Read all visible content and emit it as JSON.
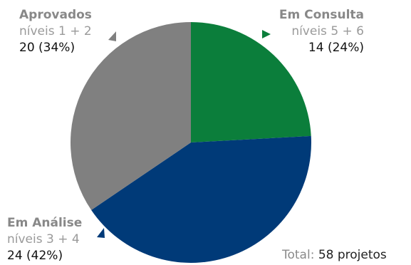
{
  "chart_data": {
    "type": "pie",
    "slices": [
      {
        "name": "Em Consulta",
        "sublabel": "níveis 5 + 6",
        "value": 14,
        "percent": "24%",
        "value_label": "14 (24%)",
        "color": "#0b7e3b"
      },
      {
        "name": "Em Análise",
        "sublabel": "níveis 3 + 4",
        "value": 24,
        "percent": "42%",
        "value_label": "24 (42%)",
        "color": "#003a78"
      },
      {
        "name": "Aprovados",
        "sublabel": "níveis 1 + 2",
        "value": 20,
        "percent": "34%",
        "value_label": "20 (34%)",
        "color": "#808080"
      }
    ],
    "total_label": "Total:",
    "total_value": "58 projetos"
  }
}
